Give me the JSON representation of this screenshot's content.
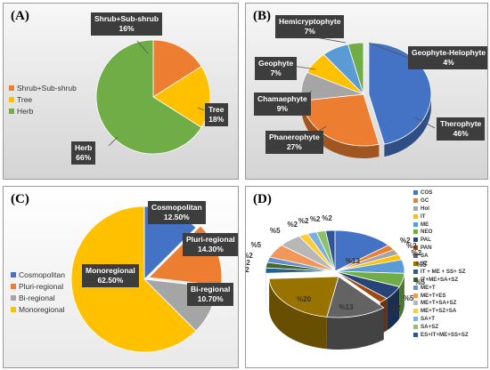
{
  "chart_data": [
    {
      "id": "A",
      "type": "pie",
      "panel_label": "(A)",
      "slices": [
        {
          "label": "Shrub+Sub-shrub",
          "callout_value": "16%",
          "value": 16,
          "color": "#ed7d31"
        },
        {
          "label": "Tree",
          "callout_value": "18%",
          "value": 18,
          "color": "#ffc000"
        },
        {
          "label": "Herb",
          "callout_value": "66%",
          "value": 66,
          "color": "#70ad47"
        }
      ],
      "legend": [
        "Shrub+Sub-shrub",
        "Tree",
        "Herb"
      ],
      "legend_colors": [
        "#ed7d31",
        "#ffc000",
        "#70ad47"
      ],
      "legend_placement": "left"
    },
    {
      "id": "B",
      "type": "pie",
      "panel_label": "(B)",
      "slices": [
        {
          "label": "Therophyte",
          "callout_value": "46%",
          "value": 46,
          "color": "#4472c4"
        },
        {
          "label": "Phanerophyte",
          "callout_value": "27%",
          "value": 27,
          "color": "#ed7d31"
        },
        {
          "label": "Chamaephyte",
          "callout_value": "9%",
          "value": 9,
          "color": "#a5a5a5"
        },
        {
          "label": "Geophyte",
          "callout_value": "7%",
          "value": 7,
          "color": "#ffc000"
        },
        {
          "label": "Hemicryptophyte",
          "callout_value": "7%",
          "value": 7,
          "color": "#5b9bd5"
        },
        {
          "label": "Geophyte-Helophyte",
          "callout_value": "4%",
          "value": 4,
          "color": "#70ad47"
        }
      ]
    },
    {
      "id": "C",
      "type": "pie",
      "panel_label": "(C)",
      "slices": [
        {
          "label": "Cosmopolitan",
          "callout_value": "12.50%",
          "value": 12.5,
          "color": "#4472c4"
        },
        {
          "label": "Pluri-regional",
          "callout_value": "14.30%",
          "value": 14.3,
          "color": "#ed7d31"
        },
        {
          "label": "Bi-regional",
          "callout_value": "10.70%",
          "value": 10.7,
          "color": "#a5a5a5"
        },
        {
          "label": "Monoregional",
          "callout_value": "62.50%",
          "value": 62.5,
          "color": "#ffc000"
        }
      ],
      "legend": [
        "Cosmopolitan",
        "Pluri-regional",
        "Bi-regional",
        "Monoregional"
      ],
      "legend_colors": [
        "#4472c4",
        "#ed7d31",
        "#a5a5a5",
        "#ffc000"
      ],
      "legend_placement": "left"
    },
    {
      "id": "D",
      "type": "pie",
      "panel_label": "(D)",
      "legend": [
        "COS",
        "GC",
        "Hol",
        "IT",
        "ME",
        "NEO",
        "PAL",
        "PAN",
        "SA",
        "SZ",
        "IT + ME + SS+ SZ",
        "IT+ME+SA+SZ",
        "ME+T",
        "ME+T+ES",
        "ME+T+SA+SZ",
        "ME+T+SZ+SA",
        "SA+T",
        "SA+SZ",
        "ES+IT+ME+SS+SZ"
      ],
      "legend_colors": [
        "#4472c4",
        "#ed7d31",
        "#a5a5a5",
        "#ffc000",
        "#5b9bd5",
        "#70ad47",
        "#264478",
        "#9e480e",
        "#636363",
        "#997300",
        "#255e91",
        "#43682b",
        "#698ed0",
        "#f1975a",
        "#b7b7b7",
        "#ffcd33",
        "#7cafdd",
        "#8cc168",
        "#2f5597"
      ],
      "values": [
        13,
        2,
        2,
        2,
        5,
        5,
        5,
        2,
        13,
        20,
        2,
        2,
        2,
        5,
        5,
        2,
        2,
        2,
        2
      ],
      "value_labels": [
        "%13",
        "%2",
        "%2",
        "%2",
        "%5",
        "%5",
        "%5",
        "%2",
        "%13",
        "%20",
        "%2",
        "%2",
        "%2",
        "%5",
        "%5",
        "%2",
        "%2",
        "%2",
        "%2"
      ],
      "legend_placement": "right"
    }
  ]
}
